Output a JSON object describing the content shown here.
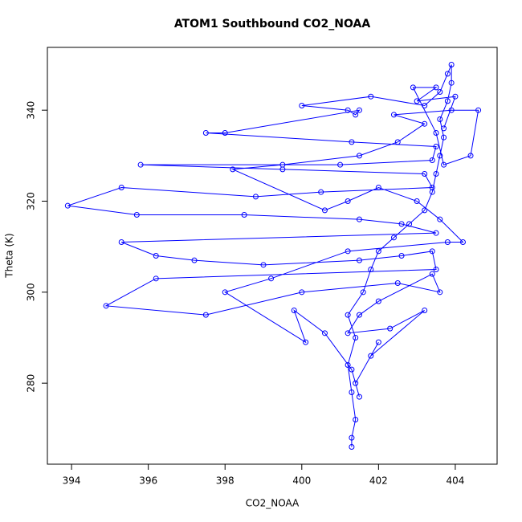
{
  "chart_data": {
    "type": "line",
    "title": "ATOM1 Southbound CO2_NOAA",
    "x_label": "CO2_NOAA",
    "y_label": "Theta (K)",
    "color": "#0000ff",
    "markers": "open-circle",
    "x": [
      401.3,
      401.3,
      401.4,
      401.3,
      401.2,
      401.4,
      401.2,
      401.6,
      401.8,
      402.0,
      402.4,
      402.8,
      403.2,
      403.4,
      403.5,
      403.6,
      403.7,
      403.6,
      403.8,
      403.9,
      403.9,
      403.8,
      403.6,
      403.2,
      401.8,
      400.0,
      401.2,
      401.4,
      401.5,
      398.0,
      397.5,
      401.3,
      403.5,
      403.4,
      401.0,
      395.8,
      399.5,
      403.2,
      403.4,
      400.5,
      398.8,
      395.3,
      393.9,
      395.7,
      398.5,
      401.5,
      402.6,
      403.5,
      395.3,
      396.2,
      397.2,
      399.0,
      401.5,
      402.6,
      403.4,
      403.5,
      396.2,
      394.9,
      397.5,
      400.0,
      402.5,
      403.6,
      403.4,
      402.0,
      401.5,
      401.2,
      402.3,
      403.2,
      401.8,
      402.0,
      401.4,
      401.5,
      401.3,
      400.6,
      399.8,
      400.1,
      398.0,
      399.2,
      401.2,
      403.8,
      404.2,
      403.6,
      403.0,
      402.0,
      401.2,
      400.6,
      398.2,
      399.5,
      401.5,
      402.5,
      403.2,
      402.4,
      403.9,
      404.6,
      404.4,
      403.7,
      403.5,
      402.9,
      403.5,
      403.0,
      404.0,
      403.7
    ],
    "values": [
      266,
      268,
      272,
      278,
      284,
      290,
      295,
      300,
      305,
      309,
      312,
      315,
      318,
      322,
      326,
      330,
      334,
      338,
      342,
      346,
      350,
      348,
      344,
      341,
      343,
      341,
      340,
      339,
      340,
      335,
      335,
      333,
      332,
      329,
      328,
      328,
      327,
      326,
      323,
      322,
      321,
      323,
      319,
      317,
      317,
      316,
      315,
      313,
      311,
      308,
      307,
      306,
      307,
      308,
      309,
      305,
      303,
      297,
      295,
      300,
      302,
      300,
      304,
      298,
      295,
      291,
      292,
      296,
      286,
      289,
      280,
      277,
      283,
      291,
      296,
      289,
      300,
      303,
      309,
      311,
      311,
      316,
      320,
      323,
      320,
      318,
      327,
      328,
      330,
      333,
      337,
      339,
      340,
      340,
      330,
      328,
      335,
      345,
      345,
      342,
      343,
      336
    ],
    "xlim": [
      393.37,
      405.09
    ],
    "ylim": [
      262.2,
      353.8
    ],
    "xticks": [
      394,
      396,
      398,
      400,
      402,
      404
    ],
    "yticks": [
      280,
      300,
      320,
      340
    ]
  }
}
